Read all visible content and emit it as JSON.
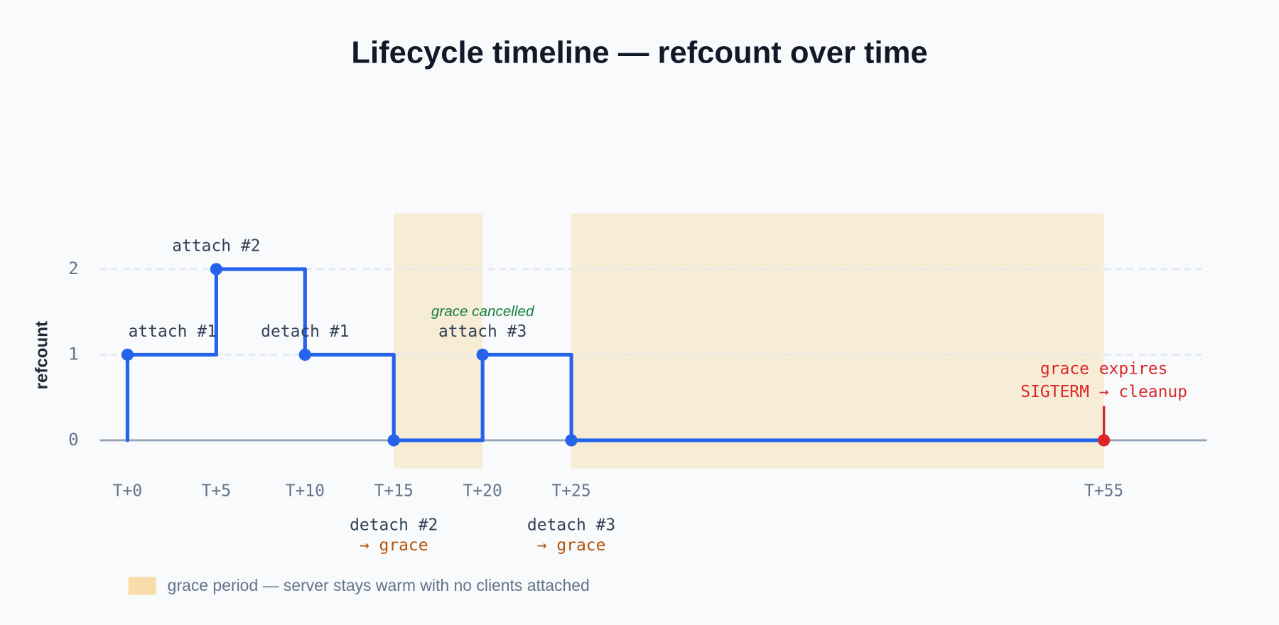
{
  "chart_data": {
    "type": "step",
    "title": "Lifecycle timeline — refcount over time",
    "y_label": "refcount",
    "x": [
      0,
      5,
      10,
      15,
      20,
      25,
      55
    ],
    "values": [
      1,
      2,
      1,
      0,
      1,
      0,
      0
    ],
    "point_labels": [
      [
        "attach #1"
      ],
      [
        "attach #2"
      ],
      [
        "detach #1"
      ],
      [
        "detach #2",
        "→ grace"
      ],
      [
        "attach #3"
      ],
      [
        "detach #3",
        "→ grace"
      ],
      [
        "grace expires",
        "SIGTERM → cleanup"
      ]
    ],
    "annotation": "grace cancelled",
    "color": "#2563eb",
    "end_color": "#dc2626",
    "shaded_ranges": [
      [
        15,
        20
      ],
      [
        25,
        55
      ]
    ],
    "shade_color": "#f7ecd6",
    "legend_color": "#f8dcaa",
    "legend_label": "grace period — server stays warm with no clients attached",
    "xlim": [
      -1.56,
      60.8
    ],
    "ylim": [
      -0.33,
      2.65
    ],
    "xticks": [
      {
        "value": 0,
        "label": "T+0"
      },
      {
        "value": 5,
        "label": "T+5"
      },
      {
        "value": 10,
        "label": "T+10"
      },
      {
        "value": 15,
        "label": "T+15"
      },
      {
        "value": 20,
        "label": "T+20"
      },
      {
        "value": 25,
        "label": "T+25"
      },
      {
        "value": 55,
        "label": "T+55"
      }
    ],
    "yticks": [
      0,
      1,
      2
    ],
    "grid": true
  }
}
